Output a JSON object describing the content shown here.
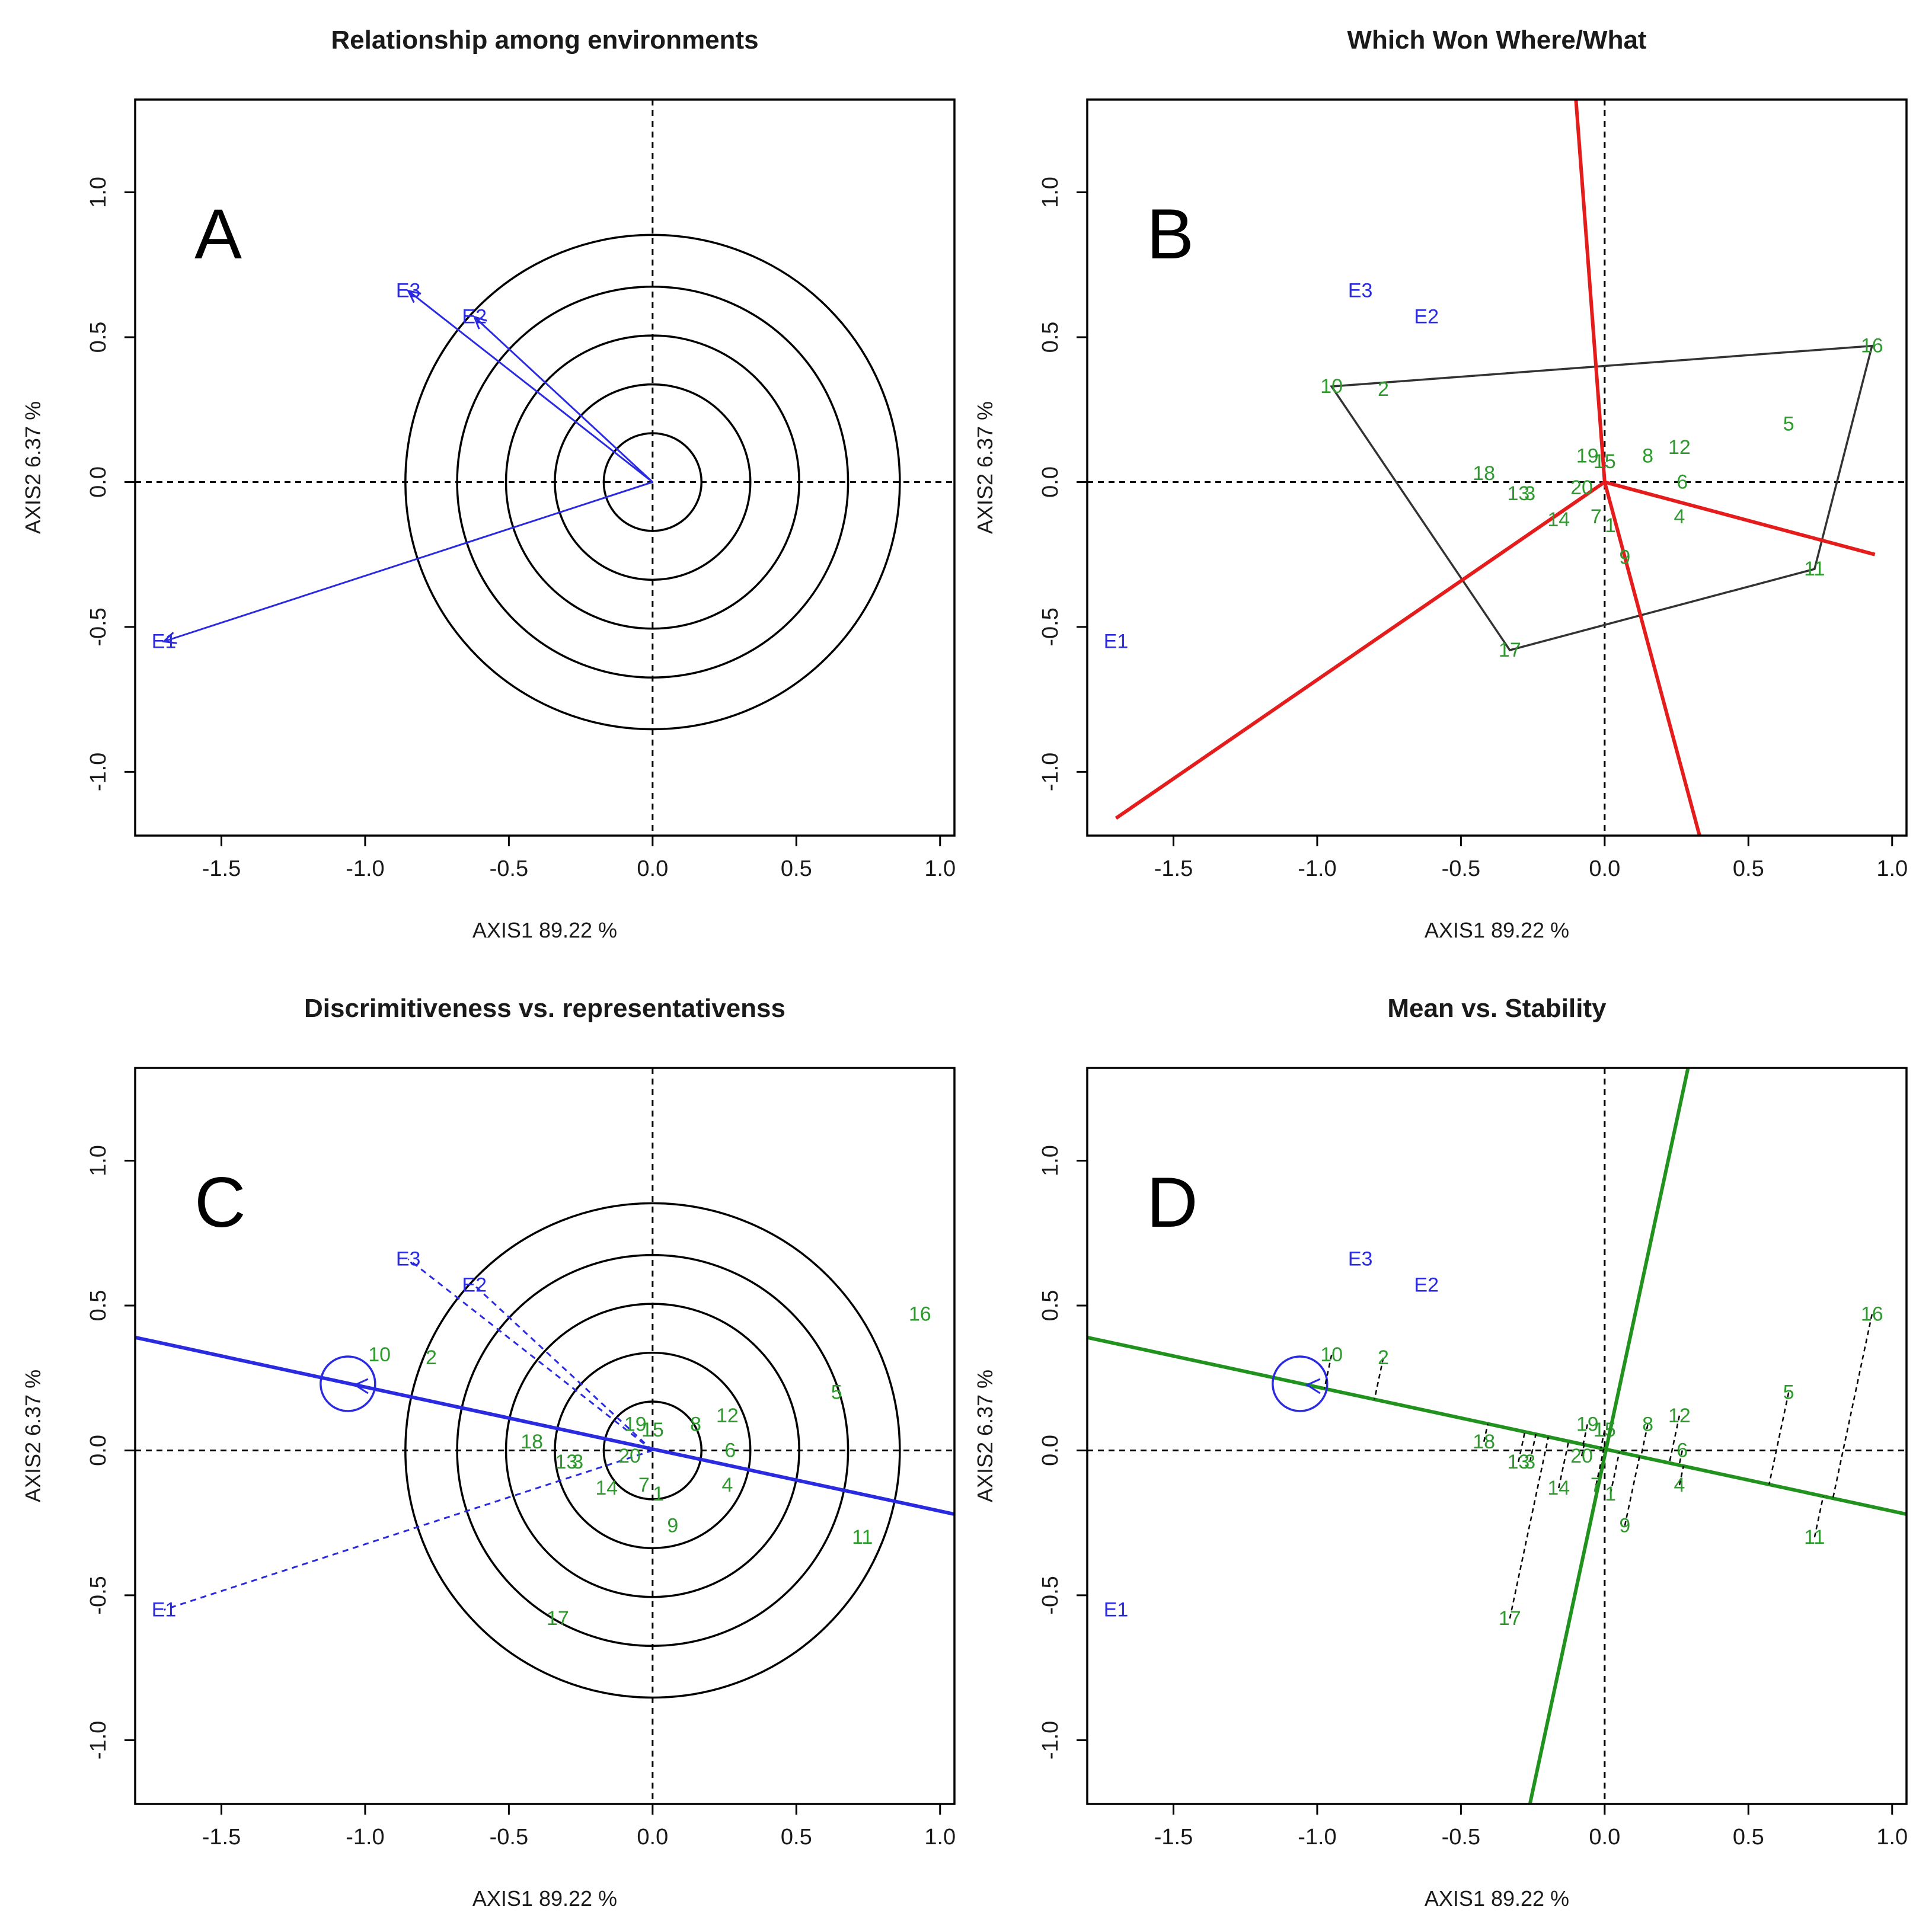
{
  "figure": {
    "axis_titles": {
      "x": "AXIS1 89.22 %",
      "y": "AXIS2 6.37 %"
    },
    "colors": {
      "environment": "#2a2ae0",
      "genotype": "#2e9a2e",
      "polygon_rays": "#e51c1c",
      "ate_lines": "#22921e",
      "axis_frame": "#000000"
    }
  },
  "chart_data": [
    {
      "type": "scatter",
      "panel_letter": "A",
      "title": "Relationship among environments",
      "xlabel": "AXIS1 89.22 %",
      "ylabel": "AXIS2 6.37 %",
      "xlim": [
        -1.8,
        1.05
      ],
      "ylim": [
        -1.22,
        1.32
      ],
      "xticks": [
        -1.5,
        -1.0,
        -0.5,
        0.0,
        0.5,
        1.0
      ],
      "xtick_labels": [
        "-1.5",
        "-1.0",
        "-0.5",
        "0.0",
        "0.5",
        "1.0"
      ],
      "yticks": [
        -1.0,
        -0.5,
        0.0,
        0.5,
        1.0
      ],
      "ytick_labels": [
        "-1.0",
        "-0.5",
        "0.0",
        "0.5",
        "1.0"
      ],
      "environments": [
        {
          "label": "E1",
          "x": -1.7,
          "y": -0.55
        },
        {
          "label": "E2",
          "x": -0.62,
          "y": 0.57
        },
        {
          "label": "E3",
          "x": -0.85,
          "y": 0.66
        }
      ],
      "genotypes": [],
      "circles": {
        "center": [
          0,
          0
        ],
        "radii": [
          0.17,
          0.34,
          0.51,
          0.68,
          0.86
        ]
      },
      "environment_vectors": true
    },
    {
      "type": "scatter",
      "panel_letter": "B",
      "title": "Which Won Where/What",
      "xlabel": "AXIS1 89.22 %",
      "ylabel": "AXIS2 6.37 %",
      "xlim": [
        -1.8,
        1.05
      ],
      "ylim": [
        -1.22,
        1.32
      ],
      "xticks": [
        -1.5,
        -1.0,
        -0.5,
        0.0,
        0.5,
        1.0
      ],
      "xtick_labels": [
        "-1.5",
        "-1.0",
        "-0.5",
        "0.0",
        "0.5",
        "1.0"
      ],
      "yticks": [
        -1.0,
        -0.5,
        0.0,
        0.5,
        1.0
      ],
      "ytick_labels": [
        "-1.0",
        "-0.5",
        "0.0",
        "0.5",
        "1.0"
      ],
      "environments": [
        {
          "label": "E1",
          "x": -1.7,
          "y": -0.55
        },
        {
          "label": "E2",
          "x": -0.62,
          "y": 0.57
        },
        {
          "label": "E3",
          "x": -0.85,
          "y": 0.66
        }
      ],
      "genotypes": [
        {
          "label": "1",
          "x": 0.02,
          "y": -0.15
        },
        {
          "label": "2",
          "x": -0.77,
          "y": 0.32
        },
        {
          "label": "3",
          "x": -0.26,
          "y": -0.04
        },
        {
          "label": "4",
          "x": 0.26,
          "y": -0.12
        },
        {
          "label": "5",
          "x": 0.64,
          "y": 0.2
        },
        {
          "label": "6",
          "x": 0.27,
          "y": 0.0
        },
        {
          "label": "7",
          "x": -0.03,
          "y": -0.12
        },
        {
          "label": "8",
          "x": 0.15,
          "y": 0.09
        },
        {
          "label": "9",
          "x": 0.07,
          "y": -0.26
        },
        {
          "label": "10",
          "x": -0.95,
          "y": 0.33
        },
        {
          "label": "11",
          "x": 0.73,
          "y": -0.3
        },
        {
          "label": "12",
          "x": 0.26,
          "y": 0.12
        },
        {
          "label": "13",
          "x": -0.3,
          "y": -0.04
        },
        {
          "label": "14",
          "x": -0.16,
          "y": -0.13
        },
        {
          "label": "15",
          "x": 0.0,
          "y": 0.07
        },
        {
          "label": "16",
          "x": 0.93,
          "y": 0.47
        },
        {
          "label": "17",
          "x": -0.33,
          "y": -0.58
        },
        {
          "label": "18",
          "x": -0.42,
          "y": 0.03
        },
        {
          "label": "19",
          "x": -0.06,
          "y": 0.09
        },
        {
          "label": "20",
          "x": -0.08,
          "y": -0.02
        }
      ],
      "polygon_vertices": [
        "10",
        "16",
        "11",
        "17"
      ],
      "ray_ends": [
        [
          -0.1,
          1.32
        ],
        [
          0.94,
          -0.25
        ],
        [
          0.33,
          -1.22
        ],
        [
          -1.7,
          -1.16
        ]
      ]
    },
    {
      "type": "scatter",
      "panel_letter": "C",
      "title": "Discrimitiveness vs. representativenss",
      "xlabel": "AXIS1 89.22 %",
      "ylabel": "AXIS2 6.37 %",
      "xlim": [
        -1.8,
        1.05
      ],
      "ylim": [
        -1.22,
        1.32
      ],
      "xticks": [
        -1.5,
        -1.0,
        -0.5,
        0.0,
        0.5,
        1.0
      ],
      "xtick_labels": [
        "-1.5",
        "-1.0",
        "-0.5",
        "0.0",
        "0.5",
        "1.0"
      ],
      "yticks": [
        -1.0,
        -0.5,
        0.0,
        0.5,
        1.0
      ],
      "ytick_labels": [
        "-1.0",
        "-0.5",
        "0.0",
        "0.5",
        "1.0"
      ],
      "environments": [
        {
          "label": "E1",
          "x": -1.7,
          "y": -0.55
        },
        {
          "label": "E2",
          "x": -0.62,
          "y": 0.57
        },
        {
          "label": "E3",
          "x": -0.85,
          "y": 0.66
        }
      ],
      "genotypes": [
        {
          "label": "1",
          "x": 0.02,
          "y": -0.15
        },
        {
          "label": "2",
          "x": -0.77,
          "y": 0.32
        },
        {
          "label": "3",
          "x": -0.26,
          "y": -0.04
        },
        {
          "label": "4",
          "x": 0.26,
          "y": -0.12
        },
        {
          "label": "5",
          "x": 0.64,
          "y": 0.2
        },
        {
          "label": "6",
          "x": 0.27,
          "y": 0.0
        },
        {
          "label": "7",
          "x": -0.03,
          "y": -0.12
        },
        {
          "label": "8",
          "x": 0.15,
          "y": 0.09
        },
        {
          "label": "9",
          "x": 0.07,
          "y": -0.26
        },
        {
          "label": "10",
          "x": -0.95,
          "y": 0.33
        },
        {
          "label": "11",
          "x": 0.73,
          "y": -0.3
        },
        {
          "label": "12",
          "x": 0.26,
          "y": 0.12
        },
        {
          "label": "13",
          "x": -0.3,
          "y": -0.04
        },
        {
          "label": "14",
          "x": -0.16,
          "y": -0.13
        },
        {
          "label": "15",
          "x": 0.0,
          "y": 0.07
        },
        {
          "label": "16",
          "x": 0.93,
          "y": 0.47
        },
        {
          "label": "17",
          "x": -0.33,
          "y": -0.58
        },
        {
          "label": "18",
          "x": -0.42,
          "y": 0.03
        },
        {
          "label": "19",
          "x": -0.06,
          "y": 0.09
        },
        {
          "label": "20",
          "x": -0.08,
          "y": -0.02
        }
      ],
      "circles": {
        "center": [
          0,
          0
        ],
        "radii": [
          0.17,
          0.34,
          0.51,
          0.68,
          0.86
        ]
      },
      "average_environment": {
        "x": -1.06,
        "y": 0.23
      },
      "aea_line": {
        "from": [
          -1.8,
          0.39
        ],
        "to": [
          1.05,
          -0.22
        ]
      }
    },
    {
      "type": "scatter",
      "panel_letter": "D",
      "title": "Mean vs. Stability",
      "xlabel": "AXIS1 89.22 %",
      "ylabel": "AXIS2 6.37 %",
      "xlim": [
        -1.8,
        1.05
      ],
      "ylim": [
        -1.22,
        1.32
      ],
      "xticks": [
        -1.5,
        -1.0,
        -0.5,
        0.0,
        0.5,
        1.0
      ],
      "xtick_labels": [
        "-1.5",
        "-1.0",
        "-0.5",
        "0.0",
        "0.5",
        "1.0"
      ],
      "yticks": [
        -1.0,
        -0.5,
        0.0,
        0.5,
        1.0
      ],
      "ytick_labels": [
        "-1.0",
        "-0.5",
        "0.0",
        "0.5",
        "1.0"
      ],
      "environments": [
        {
          "label": "E1",
          "x": -1.7,
          "y": -0.55
        },
        {
          "label": "E2",
          "x": -0.62,
          "y": 0.57
        },
        {
          "label": "E3",
          "x": -0.85,
          "y": 0.66
        }
      ],
      "genotypes": [
        {
          "label": "1",
          "x": 0.02,
          "y": -0.15
        },
        {
          "label": "2",
          "x": -0.77,
          "y": 0.32
        },
        {
          "label": "3",
          "x": -0.26,
          "y": -0.04
        },
        {
          "label": "4",
          "x": 0.26,
          "y": -0.12
        },
        {
          "label": "5",
          "x": 0.64,
          "y": 0.2
        },
        {
          "label": "6",
          "x": 0.27,
          "y": 0.0
        },
        {
          "label": "7",
          "x": -0.03,
          "y": -0.12
        },
        {
          "label": "8",
          "x": 0.15,
          "y": 0.09
        },
        {
          "label": "9",
          "x": 0.07,
          "y": -0.26
        },
        {
          "label": "10",
          "x": -0.95,
          "y": 0.33
        },
        {
          "label": "11",
          "x": 0.73,
          "y": -0.3
        },
        {
          "label": "12",
          "x": 0.26,
          "y": 0.12
        },
        {
          "label": "13",
          "x": -0.3,
          "y": -0.04
        },
        {
          "label": "14",
          "x": -0.16,
          "y": -0.13
        },
        {
          "label": "15",
          "x": 0.0,
          "y": 0.07
        },
        {
          "label": "16",
          "x": 0.93,
          "y": 0.47
        },
        {
          "label": "17",
          "x": -0.33,
          "y": -0.58
        },
        {
          "label": "18",
          "x": -0.42,
          "y": 0.03
        },
        {
          "label": "19",
          "x": -0.06,
          "y": 0.09
        },
        {
          "label": "20",
          "x": -0.08,
          "y": -0.02
        }
      ],
      "average_environment": {
        "x": -1.06,
        "y": 0.23
      },
      "aea_line": {
        "from": [
          -1.8,
          0.39
        ],
        "to": [
          1.05,
          -0.22
        ]
      },
      "ordinate_line": {
        "from": [
          -0.26,
          -1.22
        ],
        "to": [
          0.29,
          1.32
        ]
      },
      "projection_lines": true
    }
  ]
}
